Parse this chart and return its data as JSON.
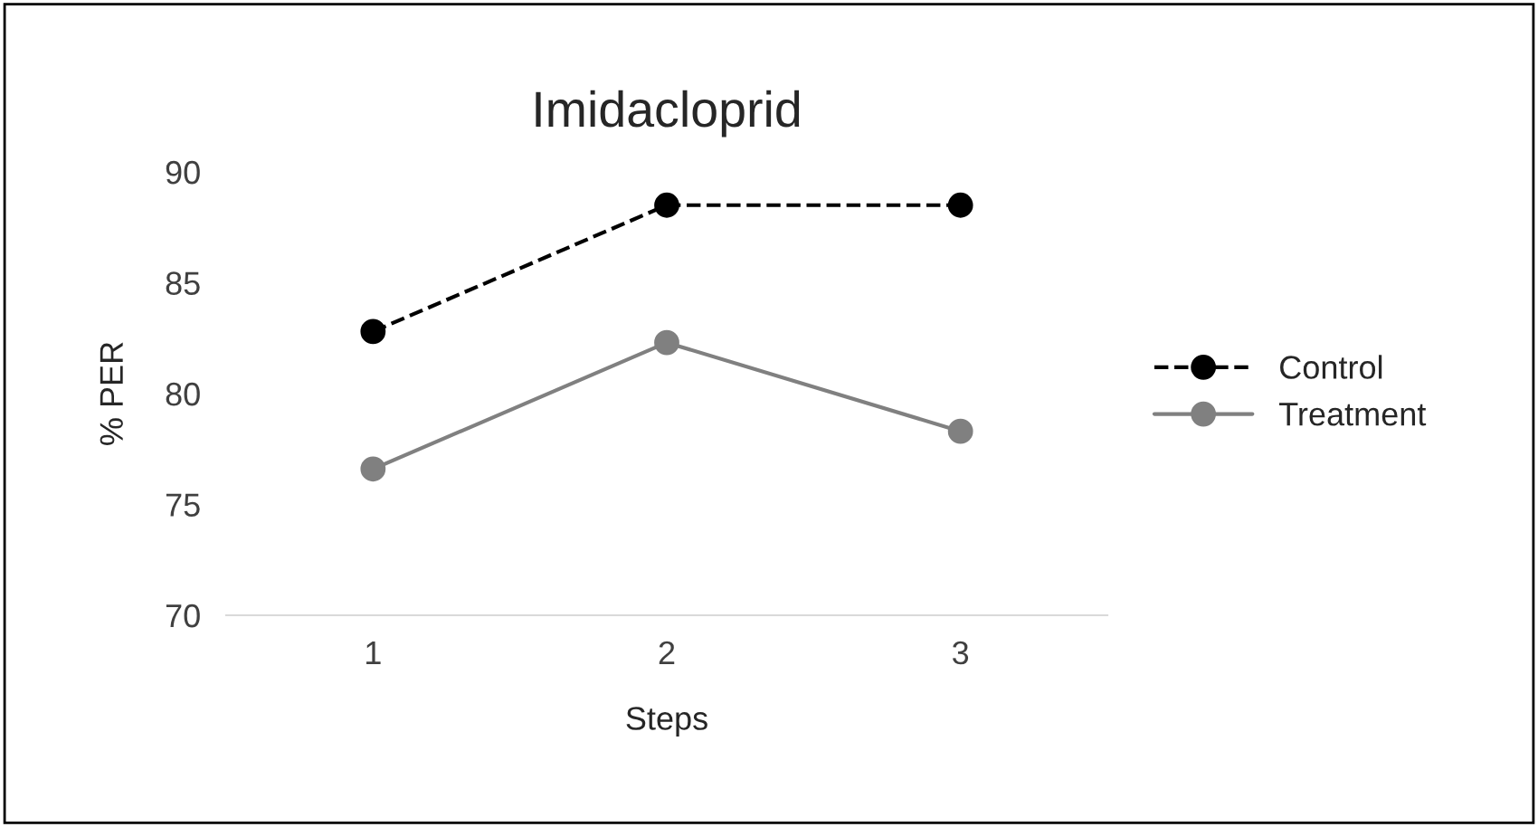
{
  "chart_data": {
    "type": "line",
    "title": "Imidacloprid",
    "xlabel": "Steps",
    "ylabel": "% PER",
    "categories": [
      "1",
      "2",
      "3"
    ],
    "series": [
      {
        "name": "Control",
        "color": "#000000",
        "values": [
          82.8,
          88.5,
          88.5
        ],
        "line_style": "dashed"
      },
      {
        "name": "Treatment",
        "color": "#808080",
        "values": [
          76.6,
          82.3,
          78.3
        ],
        "line_style": "solid"
      }
    ],
    "ylim": [
      70,
      90
    ],
    "yticks": [
      70,
      75,
      80,
      85,
      90
    ],
    "grid": false,
    "legend": "right",
    "marker": "circle"
  }
}
